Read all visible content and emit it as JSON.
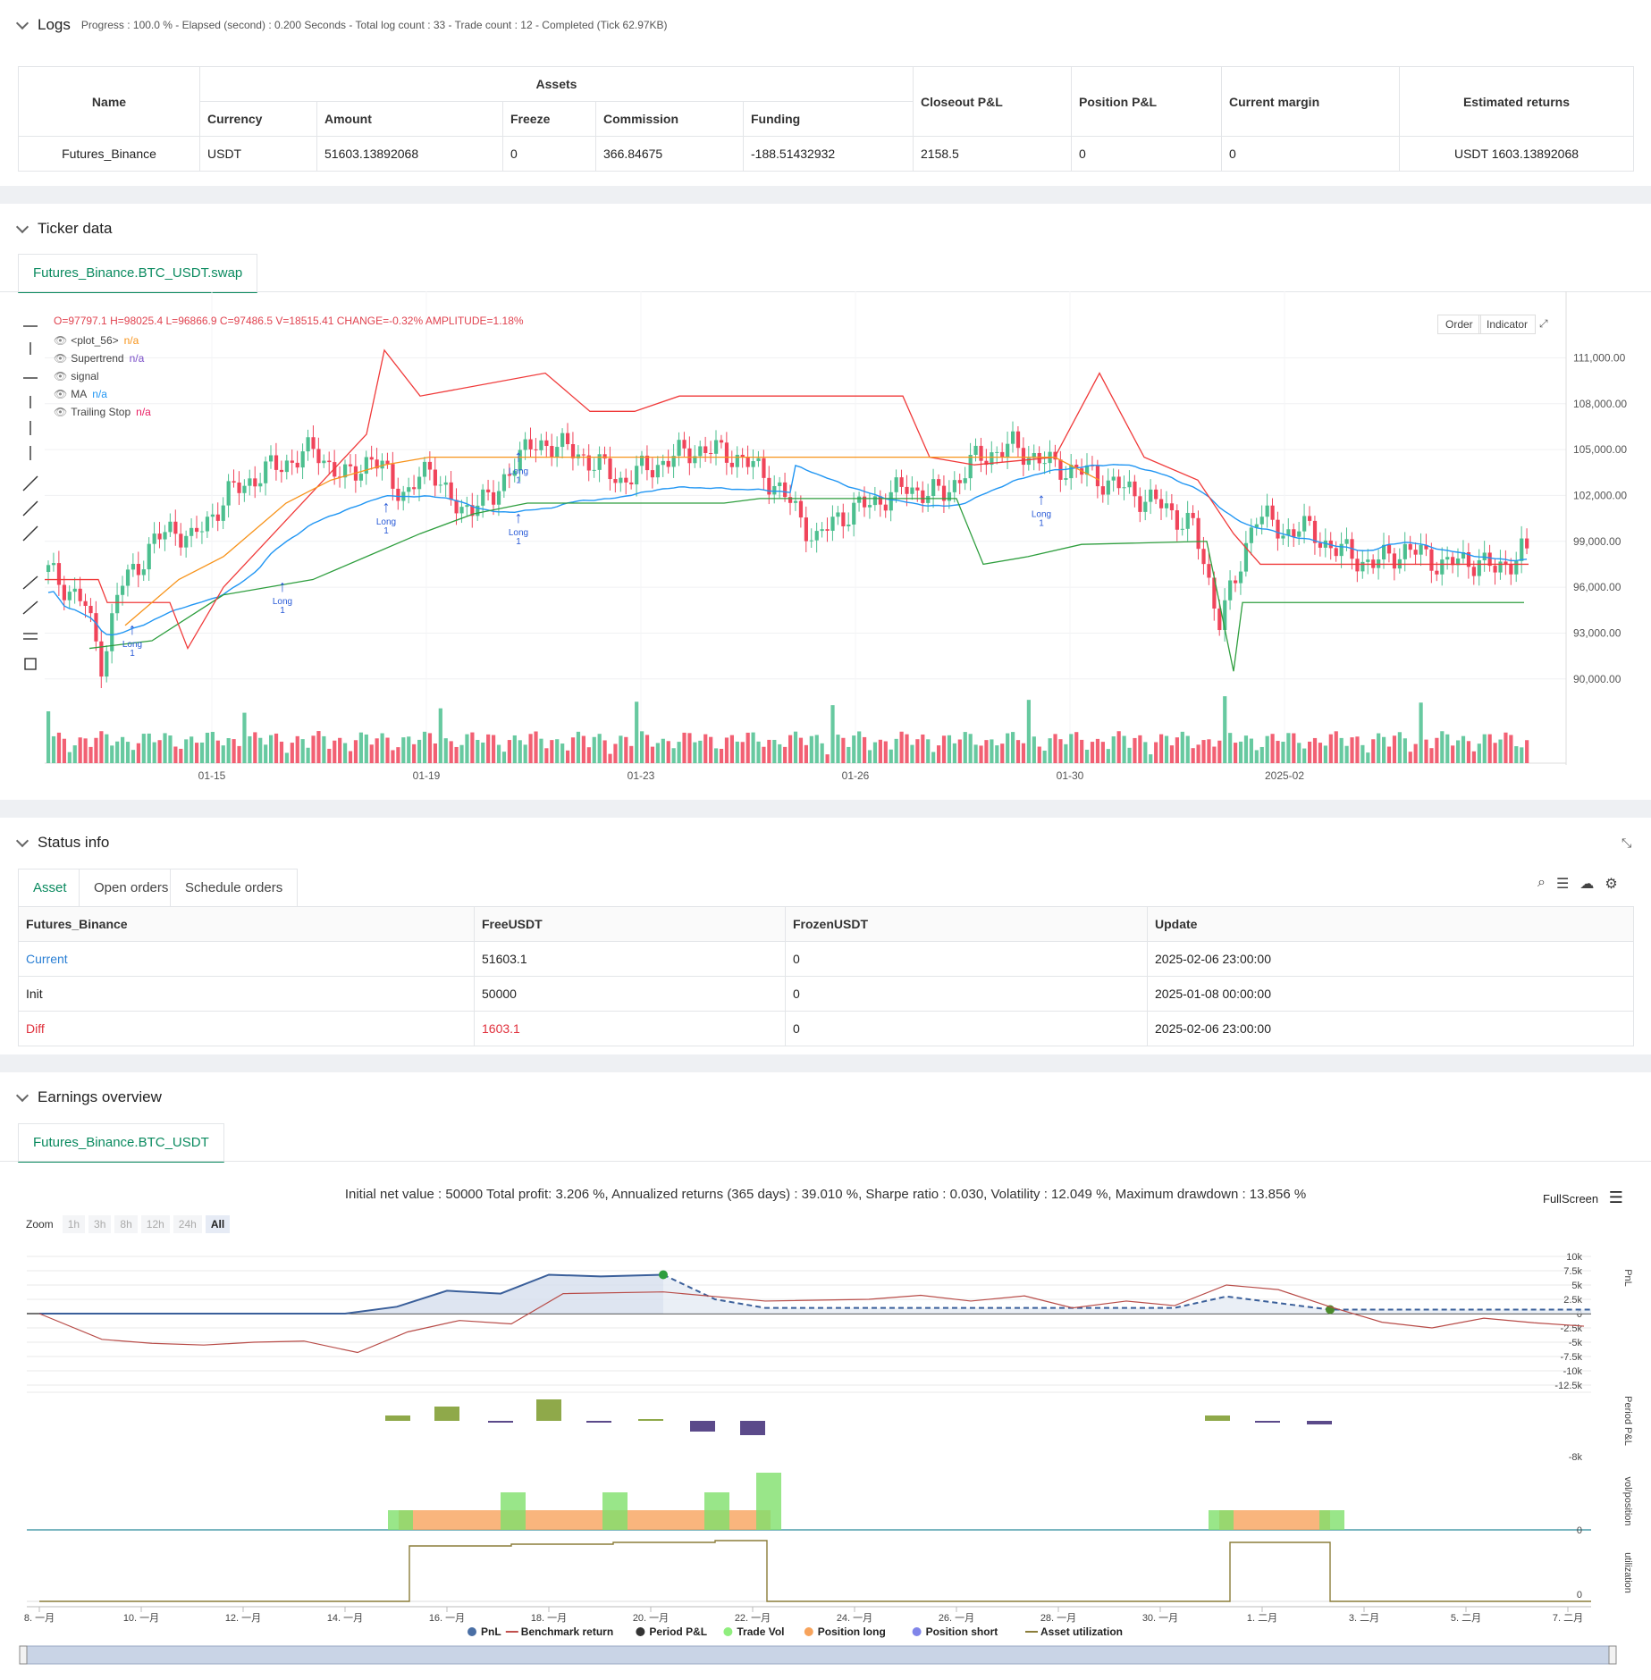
{
  "logs": {
    "title": "Logs",
    "summary": "Progress : 100.0 % - Elapsed (second) : 0.200 Seconds - Total log count : 33 - Trade count : 12 - Completed (Tick 62.97KB)",
    "table": {
      "h_name": "Name",
      "h_assets": "Assets",
      "h_currency": "Currency",
      "h_amount": "Amount",
      "h_freeze": "Freeze",
      "h_commission": "Commission",
      "h_funding": "Funding",
      "h_closeout": "Closeout P&L",
      "h_position": "Position P&L",
      "h_margin": "Current margin",
      "h_returns": "Estimated returns",
      "row": {
        "name": "Futures_Binance",
        "currency": "USDT",
        "amount": "51603.13892068",
        "freeze": "0",
        "commission": "366.84675",
        "funding": "-188.51432932",
        "closeout": "2158.5",
        "position": "0",
        "margin": "0",
        "returns": "USDT 1603.13892068"
      }
    }
  },
  "ticker": {
    "title": "Ticker data",
    "tab": "Futures_Binance.BTC_USDT.swap",
    "ohlc": {
      "o_label": "O=",
      "o": "97797.1",
      "h_label": "H=",
      "h": "98025.4",
      "l_label": "L=",
      "l": "96866.9",
      "c_label": "C=",
      "c": "97486.5",
      "v_label": "V=",
      "v": "18515.41",
      "chg_label": "CHANGE=",
      "chg": "-0.32%",
      "amp_label": "AMPLITUDE=",
      "amp": "1.18%"
    },
    "legend": [
      {
        "name": "<plot_56>",
        "value": "n/a",
        "color": "#f7931a"
      },
      {
        "name": "Supertrend",
        "value": "n/a",
        "color": "#7a4fc8"
      },
      {
        "name": "signal",
        "value": "",
        "color": "#555"
      },
      {
        "name": "MA",
        "value": "n/a",
        "color": "#2196f3"
      },
      {
        "name": "Trailing Stop",
        "value": "n/a",
        "color": "#e91e63"
      }
    ],
    "buttons": {
      "order": "Order",
      "indicator": "Indicator"
    },
    "y_ticks": [
      "111,000.00",
      "108,000.00",
      "105,000.00",
      "102,000.00",
      "99,000.00",
      "96,000.00",
      "93,000.00",
      "90,000.00"
    ],
    "x_ticks": [
      "01-15",
      "01-19",
      "01-23",
      "01-26",
      "01-30",
      "2025-02"
    ],
    "signals": [
      "Long",
      "1",
      "Long",
      "1",
      "Long",
      "1",
      "Long",
      "1",
      "Long",
      "1",
      "Long",
      "Long",
      "1"
    ],
    "up_color": "#4cbf8f",
    "down_color": "#f0445a"
  },
  "status": {
    "title": "Status info",
    "tabs": [
      "Asset",
      "Open orders",
      "Schedule orders"
    ],
    "headers": [
      "Futures_Binance",
      "FreeUSDT",
      "FrozenUSDT",
      "Update"
    ],
    "rows": [
      {
        "label": "Current",
        "free": "51603.1",
        "frozen": "0",
        "update": "2025-02-06 23:00:00"
      },
      {
        "label": "Init",
        "free": "50000",
        "frozen": "0",
        "update": "2025-01-08 00:00:00"
      },
      {
        "label": "Diff",
        "free": "1603.1",
        "frozen": "0",
        "update": "2025-02-06 23:00:00"
      }
    ]
  },
  "earnings": {
    "title": "Earnings overview",
    "tab": "Futures_Binance.BTC_USDT",
    "summary": "Initial net value : 50000 Total profit: 3.206 %, Annualized returns (365 days) : 39.010 %, Sharpe ratio : 0.030, Volatility : 12.049 %, Maximum drawdown : 13.856 %",
    "fullscreen": "FullScreen",
    "zoom_label": "Zoom",
    "zoom_options": [
      "1h",
      "3h",
      "8h",
      "12h",
      "24h",
      "All"
    ],
    "pnl_ticks": [
      "10k",
      "7.5k",
      "5k",
      "2.5k",
      "0",
      "-2.5k",
      "-5k",
      "-7.5k",
      "-10k",
      "-12.5k"
    ],
    "axis_titles": [
      "PnL",
      "Period P&L",
      "vol/position",
      "utilization"
    ],
    "period_tick": "-8k",
    "zero_tick": "0",
    "x_ticks": [
      "8. 一月",
      "10. 一月",
      "12. 一月",
      "14. 一月",
      "16. 一月",
      "18. 一月",
      "20. 一月",
      "22. 一月",
      "24. 一月",
      "26. 一月",
      "28. 一月",
      "30. 一月",
      "1. 二月",
      "3. 二月",
      "5. 二月",
      "7. 二月"
    ],
    "legend": [
      {
        "name": "PnL",
        "color": "#4a6fa5",
        "kind": "dot"
      },
      {
        "name": "Benchmark return",
        "color": "#c0504d",
        "kind": "line"
      },
      {
        "name": "Period P&L",
        "color": "#333333",
        "kind": "dot"
      },
      {
        "name": "Trade Vol",
        "color": "#90ee7e",
        "kind": "dot"
      },
      {
        "name": "Position long",
        "color": "#f7a35c",
        "kind": "dot"
      },
      {
        "name": "Position short",
        "color": "#8085e9",
        "kind": "dot"
      },
      {
        "name": "Asset utilization",
        "color": "#8b7d3a",
        "kind": "line"
      }
    ]
  }
}
